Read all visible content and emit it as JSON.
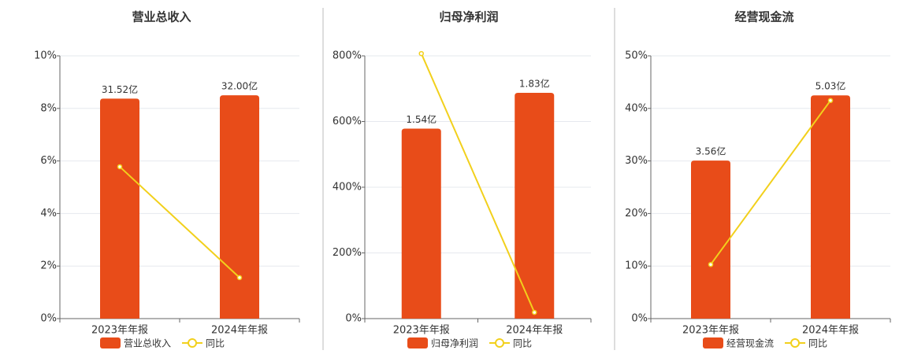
{
  "chart_data": [
    {
      "type": "combo",
      "title": "营业总收入",
      "categories": [
        "2023年年报",
        "2024年年报"
      ],
      "series": [
        {
          "name": "营业总收入",
          "type": "bar",
          "axis": "y2",
          "color": "#e84c19",
          "values": [
            31.52,
            32.0
          ],
          "value_labels": [
            "31.52亿",
            "32.00亿"
          ]
        },
        {
          "name": "同比",
          "type": "line",
          "color": "#f2d01c",
          "values": [
            5.78,
            1.56
          ]
        }
      ],
      "ylim": [
        0,
        10
      ],
      "yticks": [
        {
          "value": 0,
          "label": "0%"
        },
        {
          "value": 2,
          "label": "2%"
        },
        {
          "value": 4,
          "label": "4%"
        },
        {
          "value": 6,
          "label": "6%"
        },
        {
          "value": 8,
          "label": "8%"
        },
        {
          "value": 10,
          "label": "10%"
        }
      ],
      "y2lim": [
        0,
        37.65
      ],
      "grid": true
    },
    {
      "type": "combo",
      "title": "归母净利润",
      "categories": [
        "2023年年报",
        "2024年年报"
      ],
      "series": [
        {
          "name": "归母净利润",
          "type": "bar",
          "axis": "y2",
          "color": "#e84c19",
          "values": [
            1.54,
            1.83
          ],
          "value_labels": [
            "1.54亿",
            "1.83亿"
          ]
        },
        {
          "name": "同比",
          "type": "line",
          "color": "#f2d01c",
          "values": [
            807,
            19
          ]
        }
      ],
      "ylim": [
        0,
        800
      ],
      "yticks": [
        {
          "value": 0,
          "label": "0%"
        },
        {
          "value": 200,
          "label": "200%"
        },
        {
          "value": 400,
          "label": "400%"
        },
        {
          "value": 600,
          "label": "600%"
        },
        {
          "value": 800,
          "label": "800%"
        }
      ],
      "y2lim": [
        0,
        2.13
      ],
      "grid": true
    },
    {
      "type": "combo",
      "title": "经营现金流",
      "categories": [
        "2023年年报",
        "2024年年报"
      ],
      "series": [
        {
          "name": "经营现金流",
          "type": "bar",
          "axis": "y2",
          "color": "#e84c19",
          "values": [
            3.56,
            5.03
          ],
          "value_labels": [
            "3.56亿",
            "5.03亿"
          ]
        },
        {
          "name": "同比",
          "type": "line",
          "color": "#f2d01c",
          "values": [
            10.3,
            41.5
          ]
        }
      ],
      "ylim": [
        0,
        50
      ],
      "yticks": [
        {
          "value": 0,
          "label": "0%"
        },
        {
          "value": 10,
          "label": "10%"
        },
        {
          "value": 20,
          "label": "20%"
        },
        {
          "value": 30,
          "label": "30%"
        },
        {
          "value": 40,
          "label": "40%"
        },
        {
          "value": 50,
          "label": "50%"
        }
      ],
      "y2lim": [
        0,
        5.92
      ],
      "grid": true
    }
  ]
}
